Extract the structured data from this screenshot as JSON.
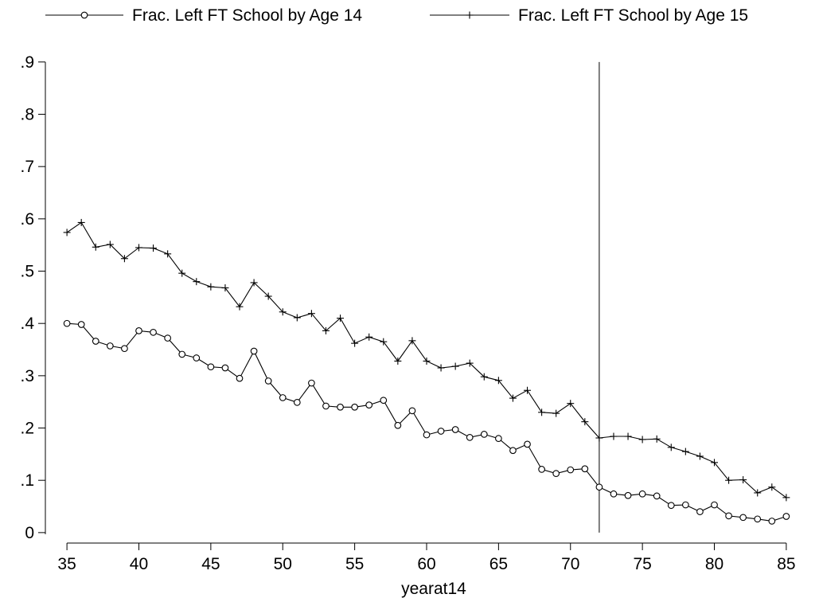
{
  "chart_data": {
    "type": "line",
    "title": "",
    "xlabel": "yearat14",
    "ylabel": "",
    "xlim": [
      33.5,
      86.5
    ],
    "ylim": [
      -0.02,
      0.95
    ],
    "x_ticks": [
      35,
      40,
      45,
      50,
      55,
      60,
      65,
      70,
      75,
      80,
      85
    ],
    "x_tick_labels": [
      "35",
      "40",
      "45",
      "50",
      "55",
      "60",
      "65",
      "70",
      "75",
      "80",
      "85"
    ],
    "y_ticks": [
      0,
      0.1,
      0.2,
      0.3,
      0.4,
      0.5,
      0.6,
      0.7,
      0.8,
      0.9
    ],
    "y_tick_labels": [
      "0",
      ".1",
      ".2",
      ".3",
      ".4",
      ".5",
      ".6",
      ".7",
      ".8",
      ".9"
    ],
    "grid": false,
    "legend_position": "top",
    "reference_line": {
      "x": 72,
      "y_range": [
        0,
        0.9
      ]
    },
    "x": [
      35,
      36,
      37,
      38,
      39,
      40,
      41,
      42,
      43,
      44,
      45,
      46,
      47,
      48,
      49,
      50,
      51,
      52,
      53,
      54,
      55,
      56,
      57,
      58,
      59,
      60,
      61,
      62,
      63,
      64,
      65,
      66,
      67,
      68,
      69,
      70,
      71,
      72,
      73,
      74,
      75,
      76,
      77,
      78,
      79,
      80,
      81,
      82,
      83,
      84,
      85
    ],
    "series": [
      {
        "name": "Frac. Left FT School by Age 14",
        "marker": "circle",
        "color": "#000000",
        "values": [
          0.4,
          0.398,
          0.366,
          0.357,
          0.352,
          0.386,
          0.383,
          0.372,
          0.341,
          0.334,
          0.317,
          0.315,
          0.295,
          0.347,
          0.29,
          0.258,
          0.249,
          0.286,
          0.242,
          0.24,
          0.24,
          0.244,
          0.253,
          0.205,
          0.233,
          0.187,
          0.194,
          0.197,
          0.182,
          0.188,
          0.18,
          0.157,
          0.169,
          0.121,
          0.113,
          0.12,
          0.122,
          0.087,
          0.074,
          0.071,
          0.074,
          0.07,
          0.052,
          0.053,
          0.04,
          0.053,
          0.032,
          0.029,
          0.026,
          0.022,
          0.031
        ]
      },
      {
        "name": "Frac. Left FT School by Age 15",
        "marker": "plus",
        "color": "#000000",
        "values": [
          0.574,
          0.593,
          0.546,
          0.551,
          0.524,
          0.545,
          0.544,
          0.533,
          0.496,
          0.48,
          0.47,
          0.468,
          0.432,
          0.478,
          0.452,
          0.422,
          0.411,
          0.419,
          0.386,
          0.41,
          0.362,
          0.374,
          0.365,
          0.328,
          0.367,
          0.328,
          0.315,
          0.318,
          0.324,
          0.298,
          0.291,
          0.257,
          0.272,
          0.23,
          0.228,
          0.247,
          0.212,
          0.181,
          0.184,
          0.184,
          0.178,
          0.179,
          0.163,
          0.155,
          0.146,
          0.134,
          0.1,
          0.101,
          0.076,
          0.087,
          0.067
        ]
      }
    ]
  }
}
